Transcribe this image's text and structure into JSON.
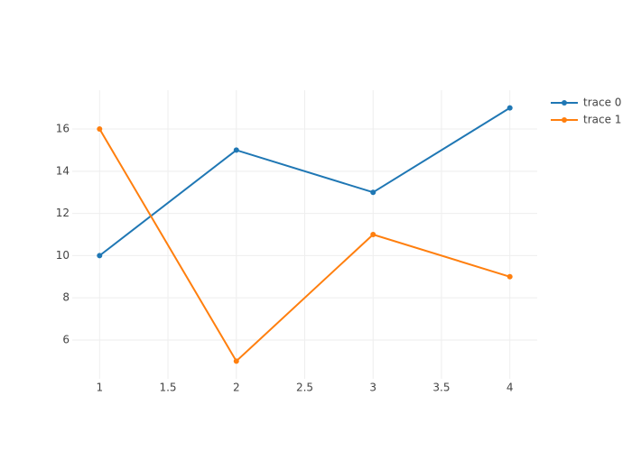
{
  "chart_data": {
    "type": "line",
    "x": [
      1,
      2,
      3,
      4
    ],
    "series": [
      {
        "name": "trace 0",
        "color": "#1f77b4",
        "values": [
          10,
          15,
          13,
          17
        ]
      },
      {
        "name": "trace 1",
        "color": "#ff7f0e",
        "values": [
          16,
          5,
          11,
          9
        ]
      }
    ],
    "xlim": [
      0.8,
      4.2
    ],
    "xticks": [
      1,
      1.5,
      2,
      2.5,
      3,
      3.5,
      4
    ],
    "ylim": [
      4.16,
      17.84
    ],
    "yticks": [
      6,
      8,
      10,
      12,
      14,
      16
    ],
    "grid": true,
    "legend": "right"
  }
}
